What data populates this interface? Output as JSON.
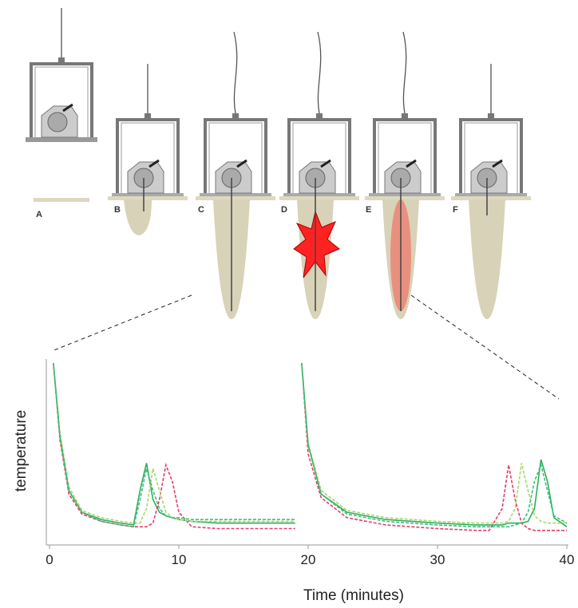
{
  "diagram": {
    "panels": [
      "A",
      "B",
      "C",
      "D",
      "E",
      "F"
    ]
  },
  "chart_data": {
    "type": "line",
    "xlabel": "Time (minutes)",
    "ylabel": "temperature",
    "xlim": [
      0,
      40
    ],
    "xticks": [
      0,
      10,
      20,
      30,
      40
    ],
    "ylim": [
      0,
      100
    ],
    "x": [
      0.3,
      0.8,
      1.5,
      2.5,
      4,
      5.5,
      6.5,
      7,
      7.5,
      8,
      8.5,
      9,
      9.5,
      10,
      11,
      13,
      16,
      19,
      19.2,
      19.5,
      20,
      21,
      23,
      26,
      30,
      33,
      34,
      35,
      35.5,
      36,
      36.5,
      37,
      37.5,
      38,
      38.5,
      39,
      40
    ],
    "series": [
      {
        "color": "#2fae5a",
        "dash": false,
        "values": [
          100,
          60,
          30,
          18,
          14,
          12,
          11,
          30,
          45,
          25,
          18,
          16,
          15,
          14,
          13,
          12,
          12,
          12,
          null,
          100,
          55,
          28,
          18,
          14,
          12,
          11,
          11,
          11,
          12,
          12,
          12,
          13,
          20,
          47,
          35,
          15,
          10
        ]
      },
      {
        "color": "#e0406a",
        "dash": true,
        "values": [
          100,
          58,
          28,
          17,
          13,
          11,
          10,
          10,
          10,
          12,
          25,
          44,
          35,
          18,
          10,
          9,
          9,
          9,
          null,
          100,
          50,
          26,
          15,
          11,
          9,
          8,
          8,
          20,
          44,
          25,
          12,
          9,
          8,
          8,
          8,
          8,
          8
        ]
      },
      {
        "color": "#a8d86a",
        "dash": true,
        "values": [
          100,
          62,
          32,
          19,
          15,
          13,
          12,
          12,
          20,
          42,
          30,
          18,
          15,
          14,
          13,
          13,
          13,
          13,
          null,
          100,
          56,
          30,
          19,
          15,
          13,
          12,
          12,
          12,
          13,
          20,
          45,
          30,
          16,
          13,
          12,
          12,
          12
        ]
      },
      {
        "color": "#3cbf7e",
        "dash": true,
        "values": [
          100,
          60,
          30,
          18,
          13,
          11,
          10,
          25,
          42,
          30,
          20,
          16,
          15,
          15,
          14,
          14,
          14,
          14,
          null,
          100,
          55,
          28,
          17,
          13,
          11,
          10,
          10,
          10,
          10,
          11,
          12,
          18,
          35,
          44,
          30,
          16,
          12
        ]
      }
    ]
  }
}
